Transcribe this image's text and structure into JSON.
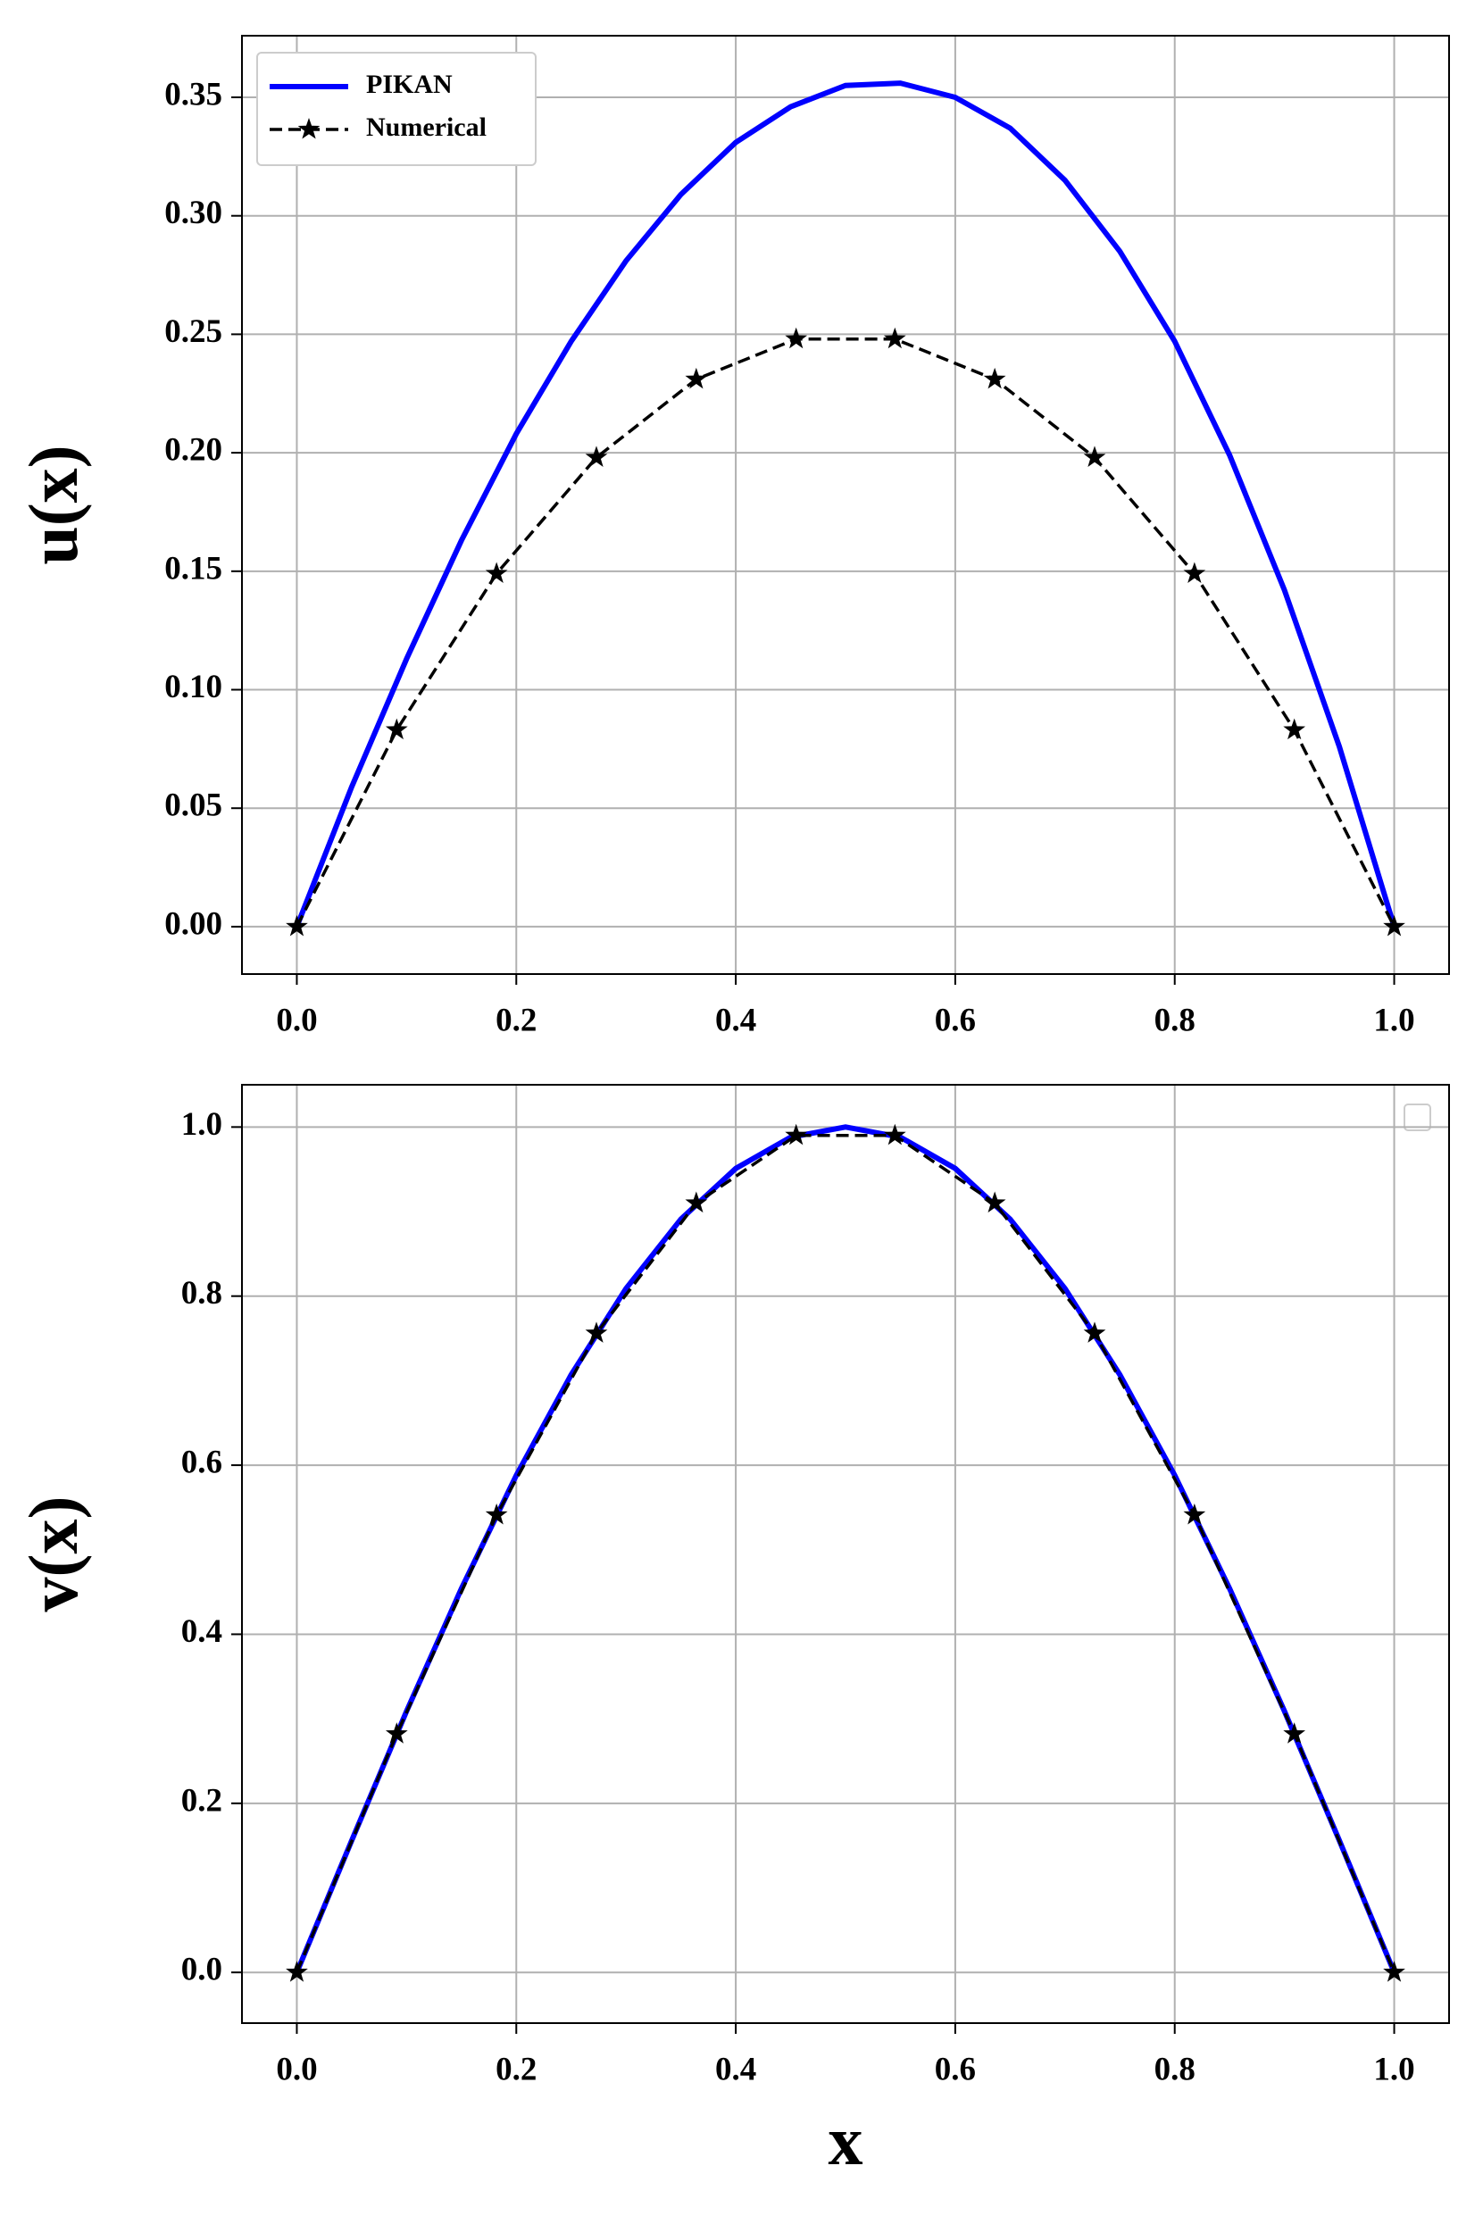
{
  "chart_data": [
    {
      "type": "line",
      "ylabel": "u(x)",
      "xlim": [
        -0.05,
        1.05
      ],
      "ylim": [
        -0.02,
        0.376
      ],
      "xticks": [
        {
          "value": 0,
          "label": "0.0"
        },
        0.2,
        0.4,
        0.6,
        0.8,
        {
          "value": 1,
          "label": "1.0"
        }
      ],
      "yticks": [
        {
          "value": 0,
          "label": "0.00"
        },
        0.05,
        {
          "value": 0.1,
          "label": "0.10"
        },
        0.15,
        {
          "value": 0.2,
          "label": "0.20"
        },
        0.25,
        {
          "value": 0.3,
          "label": "0.30"
        },
        0.35
      ],
      "grid": true,
      "legend": "upper left",
      "series": [
        {
          "name": "PIKAN",
          "color": "#0000ff",
          "style": "solid",
          "x": [
            0,
            0.05,
            0.1,
            0.15,
            0.2,
            0.25,
            0.3,
            0.35,
            0.4,
            0.45,
            0.5,
            0.55,
            0.6,
            0.65,
            0.7,
            0.75,
            0.8,
            0.85,
            0.9,
            0.95,
            1
          ],
          "values": [
            0,
            0.059,
            0.113,
            0.163,
            0.208,
            0.247,
            0.281,
            0.309,
            0.331,
            0.346,
            0.355,
            0.356,
            0.35,
            0.337,
            0.315,
            0.285,
            0.247,
            0.199,
            0.142,
            0.076,
            0
          ]
        },
        {
          "name": "Numerical",
          "color": "#000000",
          "style": "dashed",
          "marker": "star",
          "x": [
            0,
            0.091,
            0.182,
            0.273,
            0.364,
            0.455,
            0.545,
            0.636,
            0.727,
            0.818,
            0.909,
            1
          ],
          "values": [
            0,
            0.083,
            0.149,
            0.198,
            0.231,
            0.248,
            0.248,
            0.231,
            0.198,
            0.149,
            0.083,
            0
          ]
        }
      ]
    },
    {
      "type": "line",
      "ylabel": "v(x)",
      "xlabel": "x",
      "xlim": [
        -0.05,
        1.05
      ],
      "ylim": [
        -0.06,
        1.05
      ],
      "xticks": [
        {
          "value": 0,
          "label": "0.0"
        },
        0.2,
        0.4,
        0.6,
        0.8,
        {
          "value": 1,
          "label": "1.0"
        }
      ],
      "yticks": [
        {
          "value": 0,
          "label": "0.0"
        },
        0.2,
        0.4,
        0.6,
        0.8,
        {
          "value": 1,
          "label": "1.0"
        }
      ],
      "grid": true,
      "series": [
        {
          "color": "#0000ff",
          "style": "solid",
          "x": [
            0,
            0.05,
            0.1,
            0.15,
            0.2,
            0.25,
            0.3,
            0.35,
            0.4,
            0.45,
            0.5,
            0.55,
            0.6,
            0.65,
            0.7,
            0.75,
            0.8,
            0.85,
            0.9,
            0.95,
            1
          ],
          "values": [
            0,
            0.156,
            0.309,
            0.454,
            0.588,
            0.707,
            0.809,
            0.891,
            0.951,
            0.988,
            1,
            0.988,
            0.951,
            0.891,
            0.809,
            0.707,
            0.588,
            0.454,
            0.309,
            0.156,
            0
          ]
        },
        {
          "color": "#000000",
          "style": "dashed",
          "marker": "star",
          "x": [
            0,
            0.091,
            0.182,
            0.273,
            0.364,
            0.455,
            0.545,
            0.636,
            0.727,
            0.818,
            0.909,
            1
          ],
          "values": [
            0,
            0.282,
            0.541,
            0.756,
            0.91,
            0.99,
            0.99,
            0.91,
            0.756,
            0.541,
            0.282,
            0
          ]
        }
      ]
    }
  ]
}
